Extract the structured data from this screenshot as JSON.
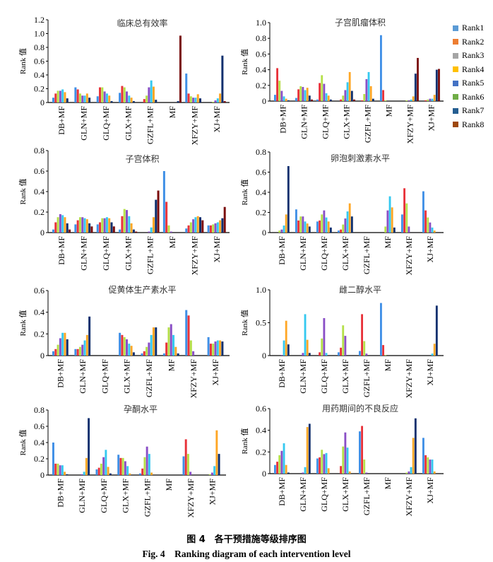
{
  "figure": {
    "caption_cn": "图 4　各干预措施等级排序图",
    "caption_en": "Fig. 4　Ranking diagram of each intervention level"
  },
  "legend": {
    "items": [
      {
        "label": "Rank1",
        "color": "#5b9bd5"
      },
      {
        "label": "Rank2",
        "color": "#ed7d31"
      },
      {
        "label": "Rank3",
        "color": "#a5a5a5"
      },
      {
        "label": "Rank4",
        "color": "#ffc000"
      },
      {
        "label": "Rank5",
        "color": "#4472c4"
      },
      {
        "label": "Rank6",
        "color": "#70ad47"
      },
      {
        "label": "Rank7",
        "color": "#255e91"
      },
      {
        "label": "Rank8",
        "color": "#9e480e"
      }
    ]
  },
  "bar_colors": [
    "#3f8fe6",
    "#e8323a",
    "#b5e04a",
    "#8a4fc6",
    "#35c9f0",
    "#ffa726",
    "#0d2f6e",
    "#7a0c0c"
  ],
  "chart_data": [
    {
      "type": "bar",
      "title": "临床总有效率",
      "ylabel": "Rank 值",
      "xlabel": "",
      "ylim": [
        0,
        1.2
      ],
      "yticks": [
        "0",
        "0.2",
        "0.4",
        "0.6",
        "0.8",
        "1.0",
        "1.2"
      ],
      "tick_values": [
        0,
        0.2,
        0.4,
        0.6,
        0.8,
        1.0,
        1.2
      ],
      "categories": [
        "DB+MF",
        "GLN+MF",
        "GLQ+MF",
        "GLX+MF",
        "GZFL+MF",
        "MF",
        "XFZY+MF",
        "XJ+MF"
      ],
      "series": [
        {
          "name": "Rank1",
          "values": [
            0.07,
            0.22,
            0.09,
            0.14,
            0.0,
            0.0,
            0.42,
            0.0
          ]
        },
        {
          "name": "Rank2",
          "values": [
            0.13,
            0.19,
            0.22,
            0.24,
            0.05,
            0.0,
            0.13,
            0.0
          ]
        },
        {
          "name": "Rank3",
          "values": [
            0.17,
            0.13,
            0.22,
            0.22,
            0.1,
            0.0,
            0.09,
            0.01
          ]
        },
        {
          "name": "Rank4",
          "values": [
            0.17,
            0.1,
            0.16,
            0.16,
            0.22,
            0.0,
            0.07,
            0.03
          ]
        },
        {
          "name": "Rank5",
          "values": [
            0.19,
            0.1,
            0.13,
            0.1,
            0.32,
            0.0,
            0.07,
            0.06
          ]
        },
        {
          "name": "Rank6",
          "values": [
            0.15,
            0.13,
            0.1,
            0.07,
            0.23,
            0.0,
            0.12,
            0.13
          ]
        },
        {
          "name": "Rank7",
          "values": [
            0.06,
            0.07,
            0.02,
            0.02,
            0.04,
            0.02,
            0.06,
            0.68
          ]
        },
        {
          "name": "Rank8",
          "values": [
            0.0,
            0.0,
            0.0,
            0.0,
            0.0,
            0.97,
            0.0,
            0.02
          ]
        }
      ]
    },
    {
      "type": "bar",
      "title": "子宫肌瘤体积",
      "ylabel": "Rank 值",
      "xlabel": "",
      "ylim": [
        0,
        1.0
      ],
      "yticks": [
        "0",
        "0.2",
        "0.4",
        "0.6",
        "0.8",
        "1.0"
      ],
      "tick_values": [
        0,
        0.2,
        0.4,
        0.6,
        0.8,
        1.0
      ],
      "categories": [
        "DB+MF",
        "GLN+MF",
        "GLQ+MF",
        "GLX+MF",
        "GZFL+MF",
        "MF",
        "XFZY+MF",
        "XJ+MF"
      ],
      "series": [
        {
          "name": "Rank1",
          "values": [
            0.08,
            0.04,
            0.02,
            0.0,
            0.0,
            0.84,
            0.0,
            0.0
          ]
        },
        {
          "name": "Rank2",
          "values": [
            0.42,
            0.15,
            0.23,
            0.02,
            0.01,
            0.14,
            0.0,
            0.01
          ]
        },
        {
          "name": "Rank3",
          "values": [
            0.26,
            0.19,
            0.33,
            0.07,
            0.09,
            0.01,
            0.01,
            0.02
          ]
        },
        {
          "name": "Rank4",
          "values": [
            0.13,
            0.18,
            0.22,
            0.14,
            0.28,
            0.0,
            0.01,
            0.03
          ]
        },
        {
          "name": "Rank5",
          "values": [
            0.06,
            0.14,
            0.1,
            0.24,
            0.37,
            0.0,
            0.02,
            0.03
          ]
        },
        {
          "name": "Rank6",
          "values": [
            0.03,
            0.17,
            0.07,
            0.37,
            0.19,
            0.0,
            0.06,
            0.08
          ]
        },
        {
          "name": "Rank7",
          "values": [
            0.01,
            0.07,
            0.02,
            0.13,
            0.03,
            0.0,
            0.35,
            0.4
          ]
        },
        {
          "name": "Rank8",
          "values": [
            0.0,
            0.02,
            0.0,
            0.02,
            0.0,
            0.0,
            0.55,
            0.41
          ]
        }
      ]
    },
    {
      "type": "bar",
      "title": "子宫体积",
      "ylabel": "Rank 值",
      "xlabel": "",
      "ylim": [
        0,
        0.8
      ],
      "yticks": [
        "0",
        "0.2",
        "0.4",
        "0.6",
        "0.8"
      ],
      "tick_values": [
        0,
        0.2,
        0.4,
        0.6,
        0.8
      ],
      "categories": [
        "DB+MF",
        "GLN+MF",
        "GLQ+MF",
        "GLX+MF",
        "GZFL+MF",
        "MF",
        "XFZY+MF",
        "XJ+MF"
      ],
      "series": [
        {
          "name": "Rank1",
          "values": [
            0.03,
            0.08,
            0.08,
            0.03,
            0.0,
            0.6,
            0.04,
            0.07
          ]
        },
        {
          "name": "Rank2",
          "values": [
            0.1,
            0.12,
            0.1,
            0.16,
            0.0,
            0.3,
            0.07,
            0.07
          ]
        },
        {
          "name": "Rank3",
          "values": [
            0.15,
            0.15,
            0.14,
            0.23,
            0.0,
            0.07,
            0.1,
            0.08
          ]
        },
        {
          "name": "Rank4",
          "values": [
            0.18,
            0.15,
            0.14,
            0.22,
            0.01,
            0.01,
            0.13,
            0.09
          ]
        },
        {
          "name": "Rank5",
          "values": [
            0.17,
            0.14,
            0.15,
            0.16,
            0.05,
            0.0,
            0.15,
            0.1
          ]
        },
        {
          "name": "Rank6",
          "values": [
            0.15,
            0.13,
            0.14,
            0.09,
            0.15,
            0.0,
            0.16,
            0.12
          ]
        },
        {
          "name": "Rank7",
          "values": [
            0.09,
            0.09,
            0.1,
            0.03,
            0.32,
            0.0,
            0.15,
            0.14
          ]
        },
        {
          "name": "Rank8",
          "values": [
            0.03,
            0.06,
            0.06,
            0.01,
            0.41,
            0.0,
            0.12,
            0.25
          ]
        }
      ]
    },
    {
      "type": "bar",
      "title": "卵泡刺激素水平",
      "ylabel": "Rank 值",
      "xlabel": "",
      "ylim": [
        0,
        0.8
      ],
      "yticks": [
        "0",
        "0.2",
        "0.4",
        "0.6",
        "0.8"
      ],
      "tick_values": [
        0,
        0.2,
        0.4,
        0.6,
        0.8
      ],
      "categories": [
        "DB+MF",
        "GLN+MF",
        "GLQ+MF",
        "GLX+MF",
        "GZFL+MF",
        "MF",
        "XFZY+MF",
        "XJ+MF"
      ],
      "series": [
        {
          "name": "Rank1",
          "values": [
            0.0,
            0.23,
            0.11,
            0.02,
            0.0,
            0.0,
            0.18,
            0.41
          ]
        },
        {
          "name": "Rank2",
          "values": [
            0.0,
            0.12,
            0.12,
            0.03,
            0.0,
            0.0,
            0.44,
            0.22
          ]
        },
        {
          "name": "Rank3",
          "values": [
            0.02,
            0.16,
            0.18,
            0.08,
            0.0,
            0.06,
            0.29,
            0.15
          ]
        },
        {
          "name": "Rank4",
          "values": [
            0.03,
            0.16,
            0.22,
            0.14,
            0.0,
            0.22,
            0.06,
            0.1
          ]
        },
        {
          "name": "Rank5",
          "values": [
            0.07,
            0.11,
            0.15,
            0.21,
            0.0,
            0.36,
            0.0,
            0.05
          ]
        },
        {
          "name": "Rank6",
          "values": [
            0.18,
            0.09,
            0.11,
            0.29,
            0.0,
            0.25,
            0.0,
            0.02
          ]
        },
        {
          "name": "Rank7",
          "values": [
            0.66,
            0.06,
            0.05,
            0.16,
            0.0,
            0.05,
            0.0,
            0.0
          ]
        }
      ]
    },
    {
      "type": "bar",
      "title": "促黄体生产素水平",
      "ylabel": "Rank 值",
      "xlabel": "",
      "ylim": [
        0,
        0.6
      ],
      "yticks": [
        "0",
        "0.2",
        "0.4",
        "0.6"
      ],
      "tick_values": [
        0,
        0.2,
        0.4,
        0.6
      ],
      "categories": [
        "DB+MF",
        "GLN+MF",
        "GLQ+MF",
        "GLX+MF",
        "GZFL+MF",
        "MF",
        "XFZY+MF",
        "XJ+MF"
      ],
      "series": [
        {
          "name": "Rank1",
          "values": [
            0.04,
            0.06,
            0.0,
            0.21,
            0.02,
            0.02,
            0.42,
            0.17
          ]
        },
        {
          "name": "Rank2",
          "values": [
            0.06,
            0.06,
            0.0,
            0.19,
            0.04,
            0.12,
            0.37,
            0.11
          ]
        },
        {
          "name": "Rank3",
          "values": [
            0.1,
            0.08,
            0.0,
            0.17,
            0.08,
            0.26,
            0.14,
            0.11
          ]
        },
        {
          "name": "Rank4",
          "values": [
            0.16,
            0.1,
            0.0,
            0.15,
            0.12,
            0.29,
            0.04,
            0.13
          ]
        },
        {
          "name": "Rank5",
          "values": [
            0.21,
            0.14,
            0.0,
            0.11,
            0.19,
            0.19,
            0.0,
            0.14
          ]
        },
        {
          "name": "Rank6",
          "values": [
            0.21,
            0.19,
            0.0,
            0.09,
            0.26,
            0.08,
            0.0,
            0.14
          ]
        },
        {
          "name": "Rank7",
          "values": [
            0.15,
            0.36,
            0.0,
            0.03,
            0.26,
            0.02,
            0.0,
            0.13
          ]
        }
      ]
    },
    {
      "type": "bar",
      "title": "雌二醇水平",
      "ylabel": "Rank 值",
      "xlabel": "",
      "ylim": [
        0,
        1.0
      ],
      "yticks": [
        "0",
        "0.5",
        "1.0"
      ],
      "tick_values": [
        0,
        0.5,
        1.0
      ],
      "categories": [
        "DB+MF",
        "GLN+MF",
        "GLQ+MF",
        "GLX+MF",
        "GZFL+MF",
        "MF",
        "XFZY+MF",
        "XJ+MF"
      ],
      "series": [
        {
          "name": "Rank1",
          "values": [
            0.0,
            0.0,
            0.0,
            0.05,
            0.07,
            0.8,
            0.0,
            0.0
          ]
        },
        {
          "name": "Rank2",
          "values": [
            0.0,
            0.0,
            0.05,
            0.12,
            0.63,
            0.16,
            0.0,
            0.0
          ]
        },
        {
          "name": "Rank3",
          "values": [
            0.0,
            0.0,
            0.26,
            0.46,
            0.22,
            0.01,
            0.0,
            0.0
          ]
        },
        {
          "name": "Rank4",
          "values": [
            0.01,
            0.04,
            0.57,
            0.3,
            0.03,
            0.0,
            0.0,
            0.0
          ]
        },
        {
          "name": "Rank5",
          "values": [
            0.23,
            0.63,
            0.04,
            0.0,
            0.0,
            0.0,
            0.0,
            0.03
          ]
        },
        {
          "name": "Rank6",
          "values": [
            0.53,
            0.24,
            0.0,
            0.0,
            0.0,
            0.0,
            0.0,
            0.18
          ]
        },
        {
          "name": "Rank7",
          "values": [
            0.17,
            0.04,
            0.0,
            0.0,
            0.0,
            0.0,
            0.0,
            0.76
          ]
        }
      ]
    },
    {
      "type": "bar",
      "title": "孕酮水平",
      "ylabel": "Rank 值",
      "xlabel": "",
      "ylim": [
        0,
        0.8
      ],
      "yticks": [
        "0",
        "0.2",
        "0.4",
        "0.6",
        "0.8"
      ],
      "tick_values": [
        0,
        0.2,
        0.4,
        0.6,
        0.8
      ],
      "categories": [
        "DB+MF",
        "GLN+MF",
        "GLQ+MF",
        "GLX+MF",
        "GZFL+MF",
        "MF",
        "XFZY+MF",
        "XJ+MF"
      ],
      "series": [
        {
          "name": "Rank1",
          "values": [
            0.4,
            0.0,
            0.07,
            0.25,
            0.02,
            0.0,
            0.23,
            0.0
          ]
        },
        {
          "name": "Rank2",
          "values": [
            0.14,
            0.0,
            0.09,
            0.21,
            0.08,
            0.0,
            0.44,
            0.0
          ]
        },
        {
          "name": "Rank3",
          "values": [
            0.14,
            0.0,
            0.14,
            0.21,
            0.22,
            0.0,
            0.26,
            0.01
          ]
        },
        {
          "name": "Rank4",
          "values": [
            0.12,
            0.01,
            0.22,
            0.17,
            0.35,
            0.0,
            0.04,
            0.03
          ]
        },
        {
          "name": "Rank5",
          "values": [
            0.12,
            0.04,
            0.31,
            0.11,
            0.26,
            0.0,
            0.0,
            0.11
          ]
        },
        {
          "name": "Rank6",
          "values": [
            0.04,
            0.21,
            0.1,
            0.02,
            0.03,
            0.0,
            0.0,
            0.55
          ]
        },
        {
          "name": "Rank7",
          "values": [
            0.01,
            0.7,
            0.02,
            0.0,
            0.0,
            0.0,
            0.0,
            0.26
          ]
        }
      ]
    },
    {
      "type": "bar",
      "title": "用药期间的不良反应",
      "ylabel": "Rank 值",
      "xlabel": "",
      "ylim": [
        0,
        0.6
      ],
      "yticks": [
        "0",
        "0.2",
        "0.4",
        "0.6"
      ],
      "tick_values": [
        0,
        0.2,
        0.4,
        0.6
      ],
      "categories": [
        "DB+MF",
        "GLN+MF",
        "GLQ+MF",
        "GLX+MF",
        "GZFL+MF",
        "MF",
        "XFZY+MF",
        "XJ+MF"
      ],
      "series": [
        {
          "name": "Rank1",
          "values": [
            0.08,
            0.0,
            0.14,
            0.0,
            0.39,
            0.0,
            0.0,
            0.33
          ]
        },
        {
          "name": "Rank2",
          "values": [
            0.11,
            0.0,
            0.15,
            0.07,
            0.44,
            0.0,
            0.0,
            0.17
          ]
        },
        {
          "name": "Rank3",
          "values": [
            0.17,
            0.0,
            0.22,
            0.25,
            0.13,
            0.0,
            0.01,
            0.15
          ]
        },
        {
          "name": "Rank4",
          "values": [
            0.21,
            0.01,
            0.18,
            0.38,
            0.01,
            0.0,
            0.02,
            0.13
          ]
        },
        {
          "name": "Rank5",
          "values": [
            0.28,
            0.06,
            0.19,
            0.24,
            0.0,
            0.0,
            0.06,
            0.13
          ]
        },
        {
          "name": "Rank6",
          "values": [
            0.08,
            0.43,
            0.05,
            0.02,
            0.0,
            0.0,
            0.33,
            0.02
          ]
        },
        {
          "name": "Rank7",
          "values": [
            0.01,
            0.46,
            0.0,
            0.0,
            0.0,
            0.0,
            0.51,
            0.0
          ]
        }
      ]
    }
  ]
}
